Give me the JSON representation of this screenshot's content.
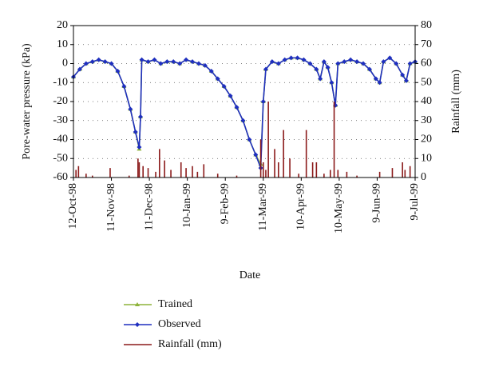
{
  "chart_data": {
    "type": "line",
    "xlabel": "Date",
    "ylabel": "Pore-water pressure (kPa)",
    "y2label": "Rainfall (mm)",
    "ylim": [
      -60,
      20
    ],
    "yticks": [
      -60,
      -50,
      -40,
      -30,
      -20,
      -10,
      0,
      10,
      20
    ],
    "y2lim": [
      0,
      80
    ],
    "y2ticks": [
      0,
      10,
      20,
      30,
      40,
      50,
      60,
      70,
      80
    ],
    "grid": true,
    "legend": "bottom",
    "xlim": [
      "1998-10-12",
      "1999-07-09"
    ],
    "xticks": [
      {
        "value": "1998-10-12",
        "label": "12-Oct-98"
      },
      {
        "value": "1998-11-11",
        "label": "11-Nov-98"
      },
      {
        "value": "1998-12-11",
        "label": "11-Dec-98"
      },
      {
        "value": "1999-01-10",
        "label": "10-Jan-99"
      },
      {
        "value": "1999-02-09",
        "label": "9-Feb-99"
      },
      {
        "value": "1999-03-11",
        "label": "11-Mar-99"
      },
      {
        "value": "1999-04-10",
        "label": "10-Apr-99"
      },
      {
        "value": "1999-05-10",
        "label": "10-May-99"
      },
      {
        "value": "1999-06-09",
        "label": "9-Jun-99"
      },
      {
        "value": "1999-07-09",
        "label": "9-Jul-99"
      }
    ],
    "x": [
      "1998-10-12",
      "1998-10-17",
      "1998-10-22",
      "1998-10-27",
      "1998-11-01",
      "1998-11-06",
      "1998-11-11",
      "1998-11-16",
      "1998-11-21",
      "1998-11-26",
      "1998-11-30",
      "1998-12-03",
      "1998-12-04",
      "1998-12-05",
      "1998-12-10",
      "1998-12-15",
      "1998-12-20",
      "1998-12-25",
      "1998-12-30",
      "1999-01-04",
      "1999-01-09",
      "1999-01-14",
      "1999-01-19",
      "1999-01-24",
      "1999-01-29",
      "1999-02-03",
      "1999-02-08",
      "1999-02-13",
      "1999-02-18",
      "1999-02-23",
      "1999-02-28",
      "1999-03-05",
      "1999-03-09",
      "1999-03-11",
      "1999-03-13",
      "1999-03-18",
      "1999-03-23",
      "1999-03-28",
      "1999-04-02",
      "1999-04-07",
      "1999-04-12",
      "1999-04-17",
      "1999-04-22",
      "1999-04-25",
      "1999-04-28",
      "1999-05-01",
      "1999-05-04",
      "1999-05-07",
      "1999-05-09",
      "1999-05-14",
      "1999-05-19",
      "1999-05-24",
      "1999-05-29",
      "1999-06-03",
      "1999-06-08",
      "1999-06-11",
      "1999-06-14",
      "1999-06-19",
      "1999-06-24",
      "1999-06-29",
      "1999-07-02",
      "1999-07-05",
      "1999-07-09"
    ],
    "series": [
      {
        "name": "Trained",
        "color": "#8db33a",
        "marker": "triangle",
        "values": [
          -7,
          -3,
          0,
          1,
          2,
          1,
          0,
          -4,
          -12,
          -24,
          -36,
          -45,
          -28,
          2,
          1,
          2,
          0,
          1,
          1,
          0,
          2,
          1,
          0,
          -1,
          -4,
          -8,
          -12,
          -17,
          -23,
          -30,
          -40,
          -48,
          -53,
          -20,
          -3,
          1,
          0,
          2,
          3,
          3,
          2,
          0,
          -3,
          -8,
          1,
          -2,
          -10,
          -22,
          0,
          1,
          2,
          1,
          0,
          -3,
          -8,
          -10,
          1,
          3,
          0,
          -6,
          -9,
          0,
          1
        ]
      },
      {
        "name": "Observed",
        "color": "#1f2fbf",
        "marker": "diamond",
        "values": [
          -7,
          -3,
          0,
          1,
          2,
          1,
          0,
          -4,
          -12,
          -24,
          -36,
          -44,
          -28,
          2,
          1,
          2,
          0,
          1,
          1,
          0,
          2,
          1,
          0,
          -1,
          -4,
          -8,
          -12,
          -17,
          -23,
          -30,
          -40,
          -48,
          -55,
          -20,
          -3,
          1,
          0,
          2,
          3,
          3,
          2,
          0,
          -3,
          -8,
          1,
          -2,
          -10,
          -22,
          0,
          1,
          2,
          1,
          0,
          -3,
          -8,
          -10,
          1,
          3,
          0,
          -6,
          -9,
          0,
          1
        ]
      },
      {
        "name": "Rainfall (mm)",
        "color": "#8b1a1a",
        "type": "bar",
        "axis": "y2",
        "x": [
          "1998-10-14",
          "1998-10-16",
          "1998-10-22",
          "1998-10-27",
          "1998-11-10",
          "1998-11-25",
          "1998-12-02",
          "1998-12-03",
          "1998-12-06",
          "1998-12-10",
          "1998-12-16",
          "1998-12-19",
          "1998-12-23",
          "1998-12-28",
          "1999-01-05",
          "1999-01-09",
          "1999-01-14",
          "1999-01-18",
          "1999-01-23",
          "1999-02-03",
          "1999-02-18",
          "1999-03-09",
          "1999-03-11",
          "1999-03-13",
          "1999-03-15",
          "1999-03-20",
          "1999-03-23",
          "1999-03-27",
          "1999-04-01",
          "1999-04-08",
          "1999-04-14",
          "1999-04-19",
          "1999-04-22",
          "1999-04-28",
          "1999-05-03",
          "1999-05-06",
          "1999-05-09",
          "1999-05-16",
          "1999-05-24",
          "1999-06-11",
          "1999-06-21",
          "1999-06-29",
          "1999-07-01",
          "1999-07-05"
        ],
        "values": [
          4,
          6,
          2,
          1,
          5,
          1,
          10,
          8,
          6,
          5,
          3,
          15,
          9,
          4,
          8,
          5,
          6,
          3,
          7,
          2,
          1,
          20,
          8,
          4,
          40,
          15,
          8,
          25,
          10,
          2,
          25,
          8,
          8,
          2,
          4,
          40,
          4,
          3,
          1,
          3,
          5,
          8,
          4,
          6
        ]
      }
    ]
  }
}
